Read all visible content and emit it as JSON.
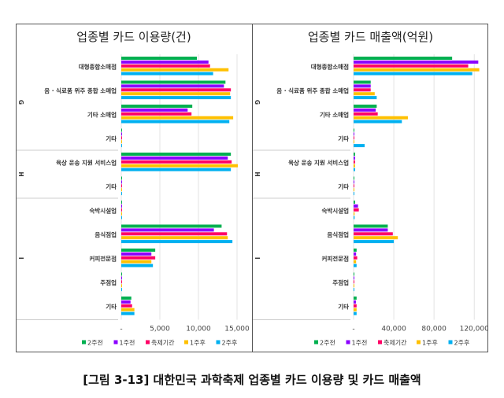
{
  "caption": "[그림 3-13] 대한민국 과학축제 업종별 카드 이용량 및 카드 매출액",
  "chart_data": [
    {
      "type": "bar",
      "orientation": "horizontal",
      "title": "업종별 카드 이용량(건)",
      "groups": [
        {
          "name": "G",
          "count": 4
        },
        {
          "name": "H",
          "count": 2
        },
        {
          "name": "I",
          "count": 5
        }
      ],
      "categories": [
        "대형종합소매점",
        "음 · 식료품 위주 종합 소매업",
        "기타 소매업",
        "기타",
        "육상 운송 지원 서비스업",
        "기타",
        "숙박시설업",
        "음식점업",
        "커피전문점",
        "주점업",
        "기타"
      ],
      "series": [
        {
          "name": "2주전",
          "color": "#00b050",
          "values": [
            9800,
            13500,
            9200,
            100,
            14200,
            100,
            100,
            13000,
            4400,
            100,
            1300
          ]
        },
        {
          "name": "1주전",
          "color": "#8b00ff",
          "values": [
            11300,
            13300,
            8600,
            100,
            13800,
            100,
            100,
            12000,
            3900,
            100,
            1200
          ]
        },
        {
          "name": "축제기간",
          "color": "#ff0066",
          "values": [
            11500,
            14200,
            9100,
            100,
            14300,
            100,
            100,
            13700,
            4400,
            100,
            1400
          ]
        },
        {
          "name": "1주후",
          "color": "#ffc000",
          "values": [
            13900,
            14100,
            14500,
            100,
            15100,
            100,
            100,
            13800,
            3900,
            100,
            1700
          ]
        },
        {
          "name": "2주후",
          "color": "#00b0f0",
          "values": [
            11900,
            14200,
            14000,
            100,
            14200,
            100,
            100,
            14400,
            4100,
            100,
            1700
          ]
        }
      ],
      "xlim": [
        0,
        15000
      ],
      "ticks": [
        0,
        5000,
        10000,
        15000
      ],
      "tick_labels": [
        "-",
        "5,000",
        "10,000",
        "15,000"
      ],
      "grid": true,
      "legend": "bottom"
    },
    {
      "type": "bar",
      "orientation": "horizontal",
      "title": "업종별 카드 매출액(억원)",
      "groups": [
        {
          "name": "G",
          "count": 4
        },
        {
          "name": "H",
          "count": 2
        },
        {
          "name": "I",
          "count": 5
        }
      ],
      "categories": [
        "대형종합소매점",
        "음 · 식료품 위주 종합 소매업",
        "기타 소매업",
        "기타",
        "육상 운송 지원 서비스업",
        "기타",
        "숙박시설업",
        "음식점업",
        "커피전문점",
        "주점업",
        "기타"
      ],
      "series": [
        {
          "name": "2주전",
          "color": "#00b050",
          "values": [
            98000,
            17000,
            23000,
            500,
            1500,
            500,
            1500,
            34000,
            3000,
            500,
            3000
          ]
        },
        {
          "name": "1주전",
          "color": "#8b00ff",
          "values": [
            124000,
            17000,
            22000,
            500,
            1500,
            500,
            4400,
            34000,
            2500,
            500,
            2300
          ]
        },
        {
          "name": "축제기간",
          "color": "#ff0066",
          "values": [
            114000,
            17000,
            24000,
            500,
            1500,
            500,
            5200,
            39000,
            3600,
            500,
            3000
          ]
        },
        {
          "name": "1주후",
          "color": "#ffc000",
          "values": [
            125000,
            21000,
            54000,
            500,
            1500,
            500,
            1000,
            44000,
            2500,
            500,
            3000
          ]
        },
        {
          "name": "2주후",
          "color": "#00b0f0",
          "values": [
            118000,
            23000,
            48000,
            11000,
            1500,
            500,
            1000,
            40000,
            3000,
            500,
            3000
          ]
        }
      ],
      "xlim": [
        0,
        130000
      ],
      "ticks": [
        0,
        40000,
        80000,
        120000
      ],
      "tick_labels": [
        "-",
        "40,000",
        "80,000",
        "120,000"
      ],
      "grid": true,
      "legend": "bottom"
    }
  ]
}
